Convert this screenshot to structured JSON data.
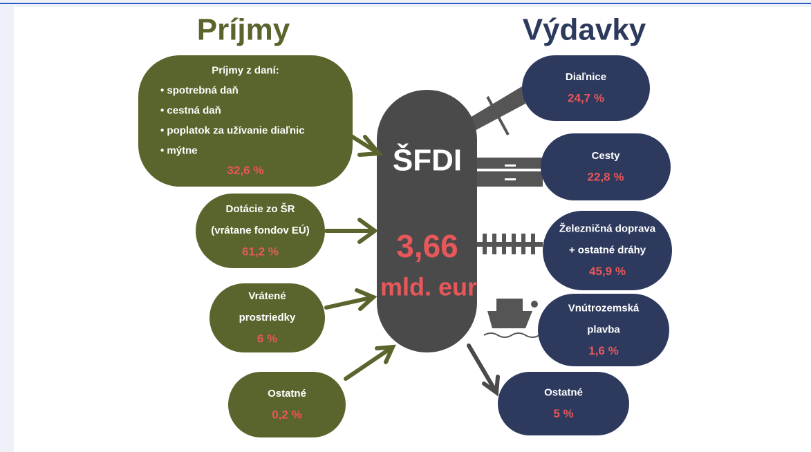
{
  "income": {
    "title": "Príjmy",
    "items": [
      {
        "lines": [
          "Príjmy z daní:",
          "• spotrebná daň",
          "• cestná daň",
          "• poplatok za užívanie diaľnic",
          "• mýtne"
        ],
        "share": "32,6 %"
      },
      {
        "lines": [
          "Dotácie zo ŠR",
          "(vrátane fondov EÚ)"
        ],
        "share": "61,2 %"
      },
      {
        "lines": [
          "Vrátené",
          "prostriedky"
        ],
        "share": "6 %"
      },
      {
        "lines": [
          "Ostatné"
        ],
        "share": "0,2 %"
      }
    ]
  },
  "center": {
    "name": "ŠFDI",
    "amount": "3,66",
    "unit": "mld. eur"
  },
  "expenses": {
    "title": "Výdavky",
    "items": [
      {
        "lines": [
          "Diaľnice"
        ],
        "share": "24,7 %"
      },
      {
        "lines": [
          "Cesty"
        ],
        "share": "22,8 %"
      },
      {
        "lines": [
          "Železničná doprava",
          "+ ostatné dráhy"
        ],
        "share": "45,9 %"
      },
      {
        "lines": [
          "Vnútrozemská",
          "plavba"
        ],
        "share": "1,6 %"
      },
      {
        "lines": [
          "Ostatné"
        ],
        "share": "5 %"
      }
    ]
  }
}
